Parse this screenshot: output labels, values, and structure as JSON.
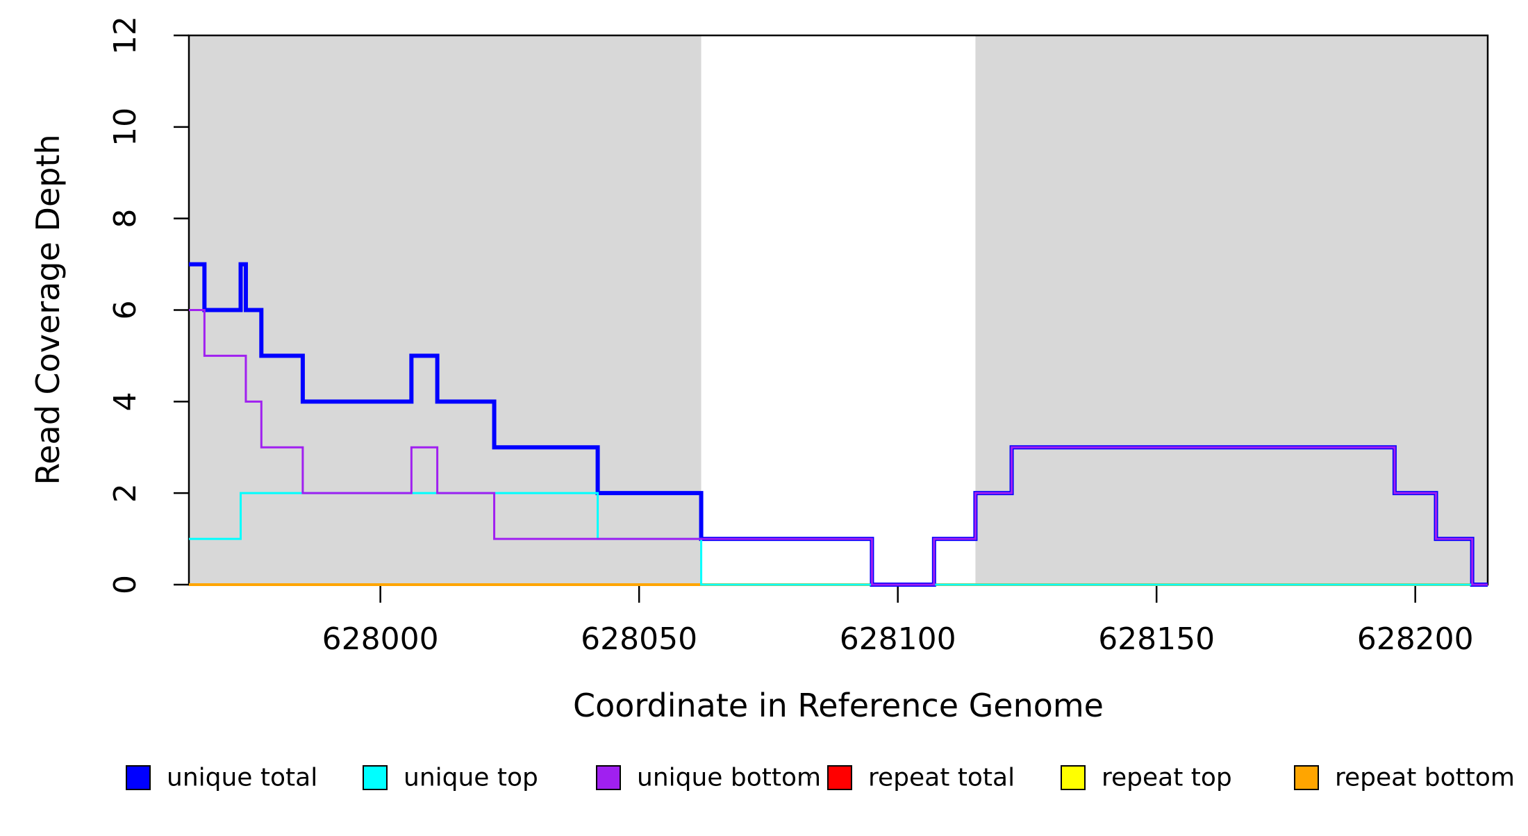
{
  "chart_data": {
    "type": "line",
    "subtype": "step",
    "title": "",
    "xlabel": "Coordinate in Reference Genome",
    "ylabel": "Read Coverage Depth",
    "xlim": [
      627963,
      628214
    ],
    "ylim": [
      0,
      12
    ],
    "x_ticks": [
      628000,
      628050,
      628100,
      628150,
      628200
    ],
    "y_ticks": [
      0,
      2,
      4,
      6,
      8,
      10,
      12
    ],
    "grid": false,
    "legend_position": "bottom",
    "plot_background": "#ffffff",
    "shaded_regions": [
      {
        "name": "repeat-region-left",
        "start": 627963,
        "end": 628062,
        "color": "#D8D8D8"
      },
      {
        "name": "repeat-region-right",
        "start": 628115,
        "end": 628214,
        "color": "#D8D8D8"
      }
    ],
    "series": [
      {
        "name": "repeat total",
        "color": "#FF0000",
        "line_width": 3,
        "draw_order": 1,
        "steps": [
          [
            627963,
            0
          ],
          [
            628214,
            0
          ]
        ]
      },
      {
        "name": "repeat top",
        "color": "#FFFF00",
        "line_width": 3,
        "draw_order": 2,
        "steps": [
          [
            627963,
            0
          ],
          [
            628214,
            0
          ]
        ]
      },
      {
        "name": "repeat bottom",
        "color": "#FFA500",
        "line_width": 4,
        "draw_order": 3,
        "steps": [
          [
            627963,
            0
          ],
          [
            628214,
            0
          ]
        ]
      },
      {
        "name": "unique total",
        "color": "#0000FF",
        "line_width": 6,
        "draw_order": 4,
        "steps": [
          [
            627963,
            7
          ],
          [
            627966,
            6
          ],
          [
            627973,
            7
          ],
          [
            627974,
            6
          ],
          [
            627977,
            5
          ],
          [
            627985,
            4
          ],
          [
            628006,
            5
          ],
          [
            628011,
            4
          ],
          [
            628022,
            3
          ],
          [
            628042,
            2
          ],
          [
            628062,
            1
          ],
          [
            628095,
            0
          ],
          [
            628107,
            1
          ],
          [
            628115,
            2
          ],
          [
            628122,
            3
          ],
          [
            628196,
            2
          ],
          [
            628204,
            1
          ],
          [
            628211,
            0
          ],
          [
            628214,
            0
          ]
        ]
      },
      {
        "name": "unique top",
        "color": "#00FFFF",
        "line_width": 3,
        "draw_order": 5,
        "steps": [
          [
            627963,
            1
          ],
          [
            627973,
            2
          ],
          [
            628042,
            1
          ],
          [
            628062,
            0
          ],
          [
            628214,
            0
          ]
        ]
      },
      {
        "name": "unique bottom",
        "color": "#A020F0",
        "line_width": 3,
        "draw_order": 6,
        "steps": [
          [
            627963,
            6
          ],
          [
            627966,
            5
          ],
          [
            627974,
            4
          ],
          [
            627977,
            3
          ],
          [
            627985,
            2
          ],
          [
            628006,
            3
          ],
          [
            628011,
            2
          ],
          [
            628022,
            1
          ],
          [
            628095,
            0
          ],
          [
            628107,
            1
          ],
          [
            628115,
            2
          ],
          [
            628122,
            3
          ],
          [
            628196,
            2
          ],
          [
            628204,
            1
          ],
          [
            628211,
            0
          ],
          [
            628214,
            0
          ]
        ]
      }
    ]
  },
  "legend": {
    "entries": [
      {
        "label": "unique total",
        "color": "#0000FF"
      },
      {
        "label": "unique top",
        "color": "#00FFFF"
      },
      {
        "label": "unique bottom",
        "color": "#A020F0"
      },
      {
        "label": "repeat total",
        "color": "#FF0000"
      },
      {
        "label": "repeat top",
        "color": "#FFFF00"
      },
      {
        "label": "repeat bottom",
        "color": "#FFA500"
      }
    ]
  },
  "axis": {
    "box_color": "#000000"
  }
}
